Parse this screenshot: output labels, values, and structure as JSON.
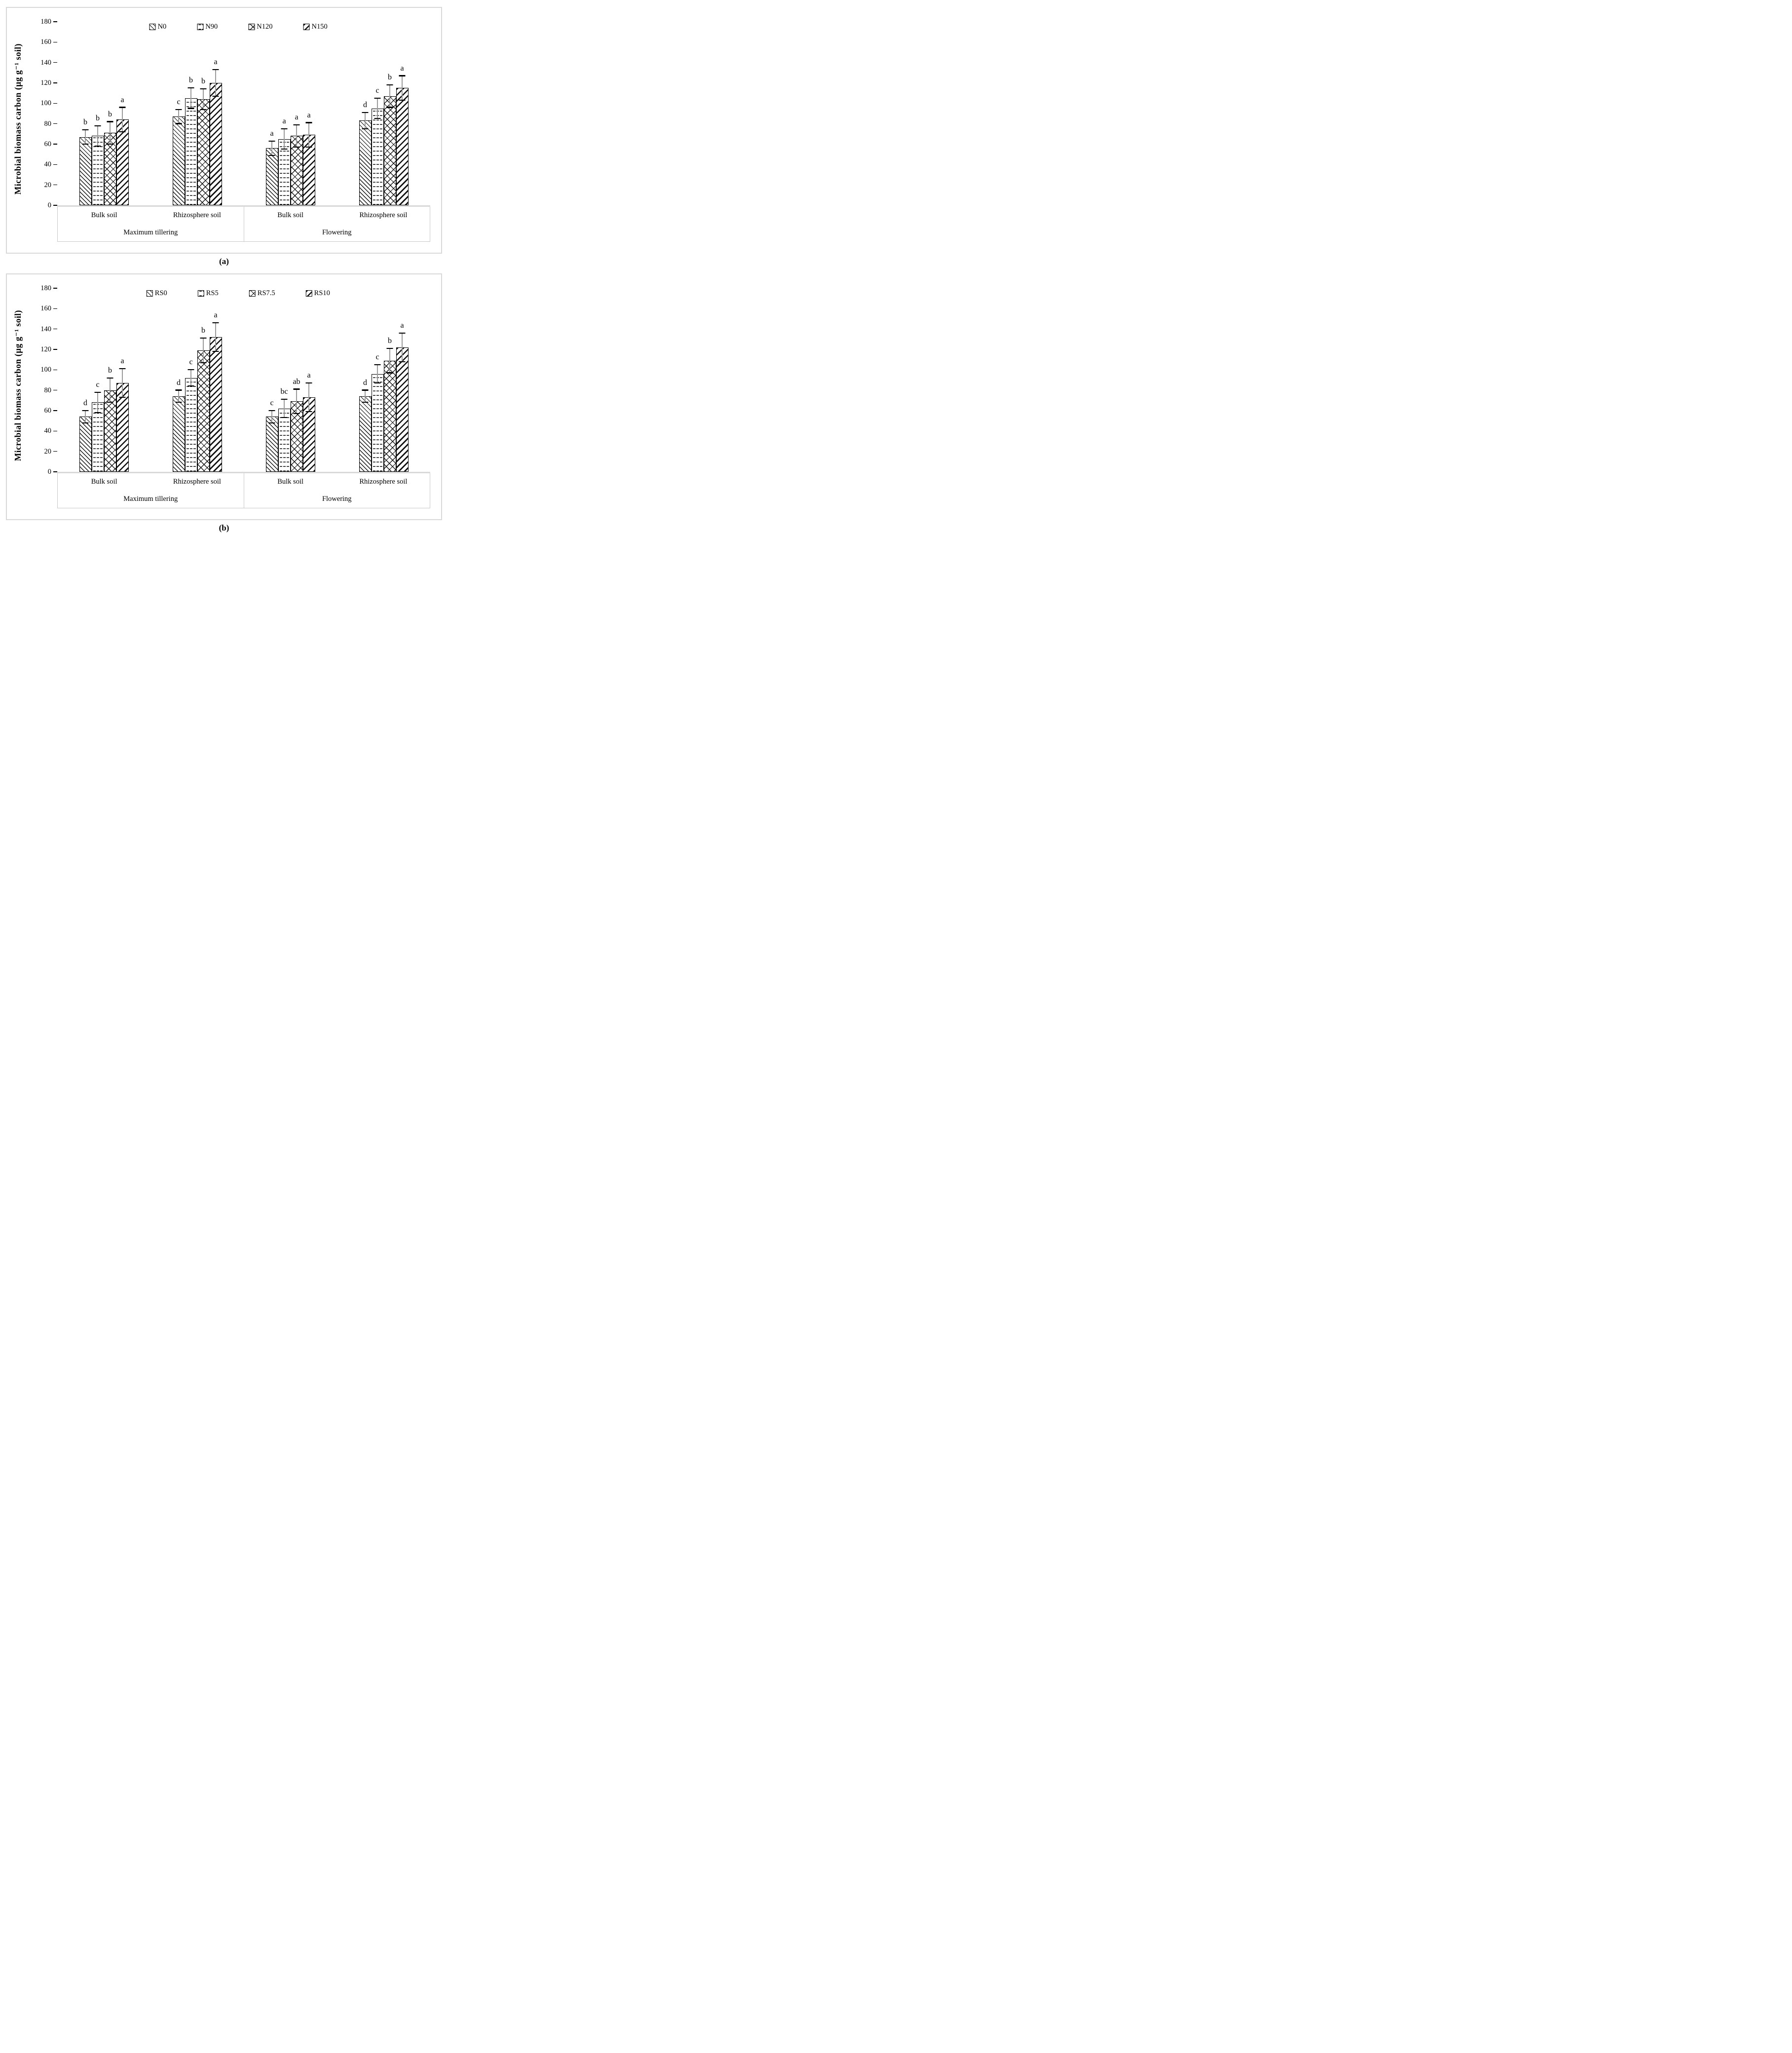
{
  "colors": {
    "panel_border": "#d9d9d9",
    "axis_baseline": "#d9d9d9",
    "table_border": "#c9c9c9",
    "error_stem": "#9b9b9b",
    "bar_outline": "#000000",
    "text": "#000000"
  },
  "chart_data": [
    {
      "type": "bar",
      "panel": "a",
      "caption": "(a)",
      "ylabel": "Microbial biomass carbon (µg g⁻¹ soil)",
      "ylim": [
        0,
        180
      ],
      "yticks": [
        0,
        20,
        40,
        60,
        80,
        100,
        120,
        140,
        160,
        180
      ],
      "grid": false,
      "legend_position": "top-center",
      "legend": [
        "N0",
        "N90",
        "N120",
        "N150"
      ],
      "hatches": [
        "diagonal-down-thin",
        "wavy-rows",
        "diamond-crosshatch",
        "diagonal-up-thick"
      ],
      "categories": [
        {
          "soil": "Bulk soil",
          "stage": "Maximum tillering"
        },
        {
          "soil": "Rhizosphere soil",
          "stage": "Maximum tillering"
        },
        {
          "soil": "Bulk soil",
          "stage": "Flowering"
        },
        {
          "soil": "Rhizosphere soil",
          "stage": "Flowering"
        }
      ],
      "stage_labels": [
        "Maximum tillering",
        "Flowering"
      ],
      "series": [
        {
          "name": "N0",
          "values": [
            67,
            87,
            56,
            83
          ],
          "errors": [
            7,
            7,
            7,
            8
          ],
          "letters": [
            "b",
            "c",
            "a",
            "d"
          ]
        },
        {
          "name": "N90",
          "values": [
            68,
            105,
            65,
            95
          ],
          "errors": [
            10,
            10,
            10,
            10
          ],
          "letters": [
            "b",
            "b",
            "a",
            "c"
          ]
        },
        {
          "name": "N120",
          "values": [
            71,
            104,
            68,
            107
          ],
          "errors": [
            11,
            10,
            11,
            11
          ],
          "letters": [
            "b",
            "b",
            "a",
            "b"
          ]
        },
        {
          "name": "N150",
          "values": [
            84,
            120,
            69,
            115
          ],
          "errors": [
            12,
            13,
            12,
            12
          ],
          "letters": [
            "a",
            "a",
            "a",
            "a"
          ]
        }
      ]
    },
    {
      "type": "bar",
      "panel": "b",
      "caption": "(b)",
      "ylabel": "Microbial biomass carbon (µg g⁻¹ soil)",
      "ylim": [
        0,
        180
      ],
      "yticks": [
        0,
        20,
        40,
        60,
        80,
        100,
        120,
        140,
        160,
        180
      ],
      "grid": false,
      "legend_position": "top-center",
      "legend": [
        "RS0",
        "RS5",
        "RS7.5",
        "RS10"
      ],
      "hatches": [
        "diagonal-down-thin",
        "wavy-rows",
        "diamond-crosshatch",
        "diagonal-up-thick"
      ],
      "categories": [
        {
          "soil": "Bulk soil",
          "stage": "Maximum tillering"
        },
        {
          "soil": "Rhizosphere soil",
          "stage": "Maximum tillering"
        },
        {
          "soil": "Bulk soil",
          "stage": "Flowering"
        },
        {
          "soil": "Rhizosphere soil",
          "stage": "Flowering"
        }
      ],
      "stage_labels": [
        "Maximum tillering",
        "Flowering"
      ],
      "series": [
        {
          "name": "RS0",
          "values": [
            54,
            74,
            54,
            74
          ],
          "errors": [
            6,
            6,
            6,
            6
          ],
          "letters": [
            "d",
            "d",
            "c",
            "d"
          ]
        },
        {
          "name": "RS5",
          "values": [
            68,
            92,
            62,
            96
          ],
          "errors": [
            10,
            8,
            9,
            9
          ],
          "letters": [
            "c",
            "c",
            "bc",
            "c"
          ]
        },
        {
          "name": "RS7.5",
          "values": [
            80,
            119,
            69,
            109
          ],
          "errors": [
            12,
            12,
            12,
            12
          ],
          "letters": [
            "b",
            "b",
            "ab",
            "b"
          ]
        },
        {
          "name": "RS10",
          "values": [
            87,
            132,
            73,
            122
          ],
          "errors": [
            14,
            14,
            14,
            14
          ],
          "letters": [
            "a",
            "a",
            "a",
            "a"
          ]
        }
      ]
    }
  ]
}
